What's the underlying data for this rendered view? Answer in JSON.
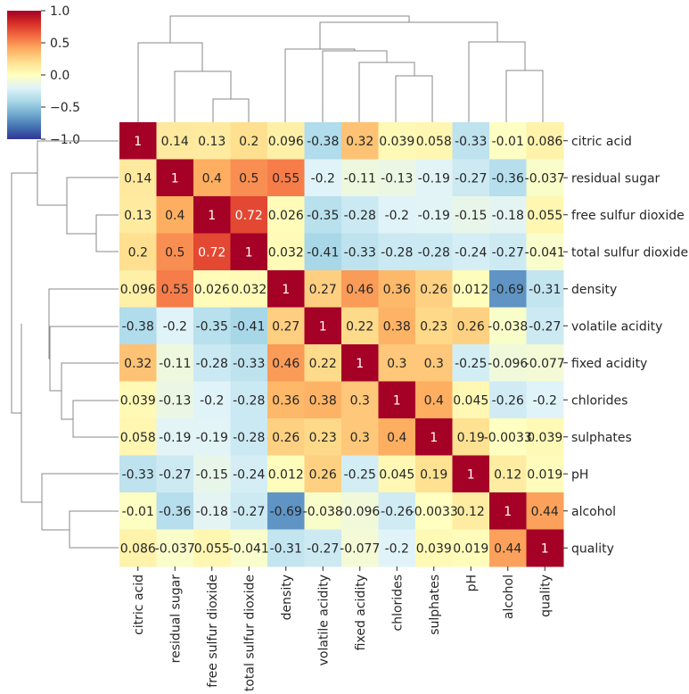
{
  "chart_data": {
    "type": "heatmap",
    "title": "",
    "colormap": "RdYlBu_r",
    "vmin": -1.0,
    "vmax": 1.0,
    "row_labels": [
      "citric acid",
      "residual sugar",
      "free sulfur dioxide",
      "total sulfur dioxide",
      "density",
      "volatile acidity",
      "fixed acidity",
      "chlorides",
      "sulphates",
      "pH",
      "alcohol",
      "quality"
    ],
    "col_labels": [
      "citric acid",
      "residual sugar",
      "free sulfur dioxide",
      "total sulfur dioxide",
      "density",
      "volatile acidity",
      "fixed acidity",
      "chlorides",
      "sulphates",
      "pH",
      "alcohol",
      "quality"
    ],
    "values": [
      [
        1,
        0.14,
        0.13,
        0.2,
        0.096,
        -0.38,
        0.32,
        0.039,
        0.058,
        -0.33,
        -0.01,
        0.086
      ],
      [
        0.14,
        1,
        0.4,
        0.5,
        0.55,
        -0.2,
        -0.11,
        -0.13,
        -0.19,
        -0.27,
        -0.36,
        -0.037
      ],
      [
        0.13,
        0.4,
        1,
        0.72,
        0.026,
        -0.35,
        -0.28,
        -0.2,
        -0.19,
        -0.15,
        -0.18,
        0.055
      ],
      [
        0.2,
        0.5,
        0.72,
        1,
        0.032,
        -0.41,
        -0.33,
        -0.28,
        -0.28,
        -0.24,
        -0.27,
        -0.041
      ],
      [
        0.096,
        0.55,
        0.026,
        0.032,
        1,
        0.27,
        0.46,
        0.36,
        0.26,
        0.012,
        -0.69,
        -0.31
      ],
      [
        -0.38,
        -0.2,
        -0.35,
        -0.41,
        0.27,
        1,
        0.22,
        0.38,
        0.23,
        0.26,
        -0.038,
        -0.27
      ],
      [
        0.32,
        -0.11,
        -0.28,
        -0.33,
        0.46,
        0.22,
        1,
        0.3,
        0.3,
        -0.25,
        -0.096,
        -0.077
      ],
      [
        0.039,
        -0.13,
        -0.2,
        -0.28,
        0.36,
        0.38,
        0.3,
        1,
        0.4,
        0.045,
        -0.26,
        -0.2
      ],
      [
        0.058,
        -0.19,
        -0.19,
        -0.28,
        0.26,
        0.23,
        0.3,
        0.4,
        1,
        0.19,
        -0.0033,
        0.039
      ],
      [
        -0.33,
        -0.27,
        -0.15,
        -0.24,
        0.012,
        0.26,
        -0.25,
        0.045,
        0.19,
        1,
        0.12,
        0.019
      ],
      [
        -0.01,
        -0.36,
        -0.18,
        -0.27,
        -0.69,
        -0.038,
        -0.096,
        -0.26,
        -0.0033,
        0.12,
        1,
        0.44
      ],
      [
        0.086,
        -0.037,
        0.055,
        -0.041,
        -0.31,
        -0.27,
        -0.077,
        -0.2,
        0.039,
        0.019,
        0.44,
        1
      ]
    ],
    "colorbar": {
      "ticks": [
        1.0,
        0.5,
        0.0,
        -0.5,
        -1.0
      ],
      "tick_labels": [
        "1.0",
        "0.5",
        "0.0",
        "−0.5",
        "−1.0"
      ]
    },
    "dendrogram": "hierarchical clustering tree on rows and columns (same ordering)"
  }
}
